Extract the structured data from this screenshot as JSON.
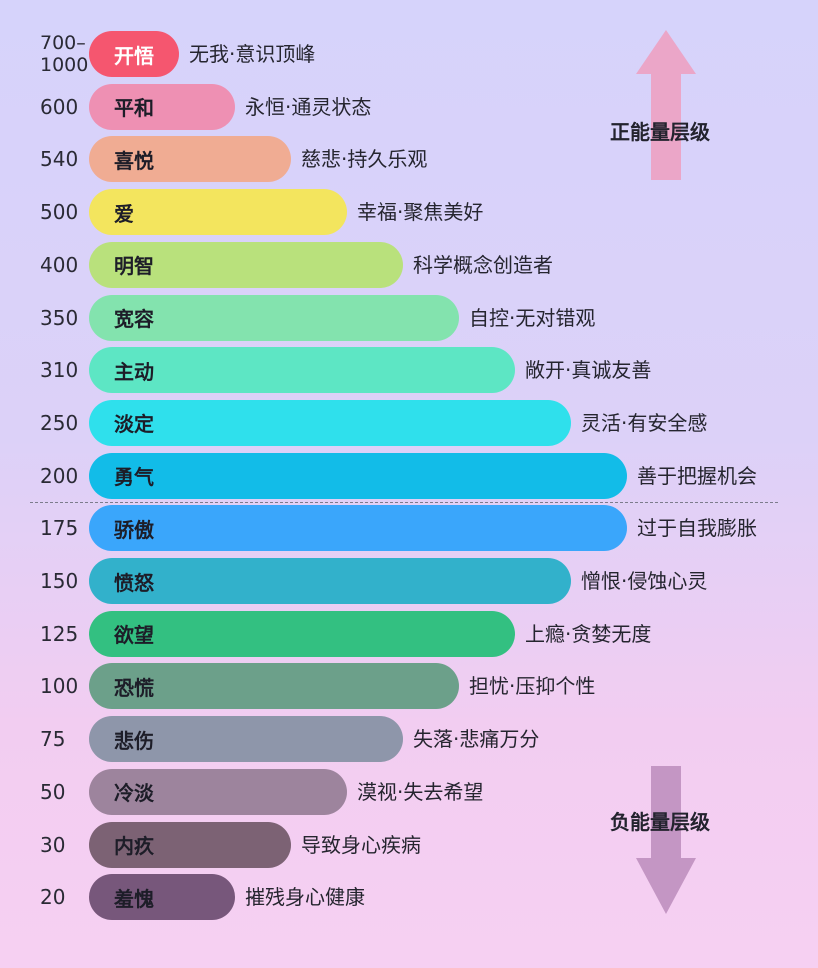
{
  "levels": [
    {
      "score": "700–\n1000",
      "name": "开悟",
      "desc": "无我·意识顶峰",
      "color": "#f5566f",
      "text_color": "#ffffff"
    },
    {
      "score": "600",
      "name": "平和",
      "desc": "永恒·通灵状态",
      "color": "#ee90b3",
      "text_color": "#1d1d28"
    },
    {
      "score": "540",
      "name": "喜悦",
      "desc": "慈悲·持久乐观",
      "color": "#f0ac93",
      "text_color": "#1d1d28"
    },
    {
      "score": "500",
      "name": "爱",
      "desc": "幸福·聚焦美好",
      "color": "#f3e55e",
      "text_color": "#1d1d28"
    },
    {
      "score": "400",
      "name": "明智",
      "desc": "科学概念创造者",
      "color": "#b9e17c",
      "text_color": "#1d1d28"
    },
    {
      "score": "350",
      "name": "宽容",
      "desc": "自控·无对错观",
      "color": "#83e3ae",
      "text_color": "#1d1d28"
    },
    {
      "score": "310",
      "name": "主动",
      "desc": "敞开·真诚友善",
      "color": "#5de6c4",
      "text_color": "#1d1d28"
    },
    {
      "score": "250",
      "name": "淡定",
      "desc": "灵活·有安全感",
      "color": "#2fe0ec",
      "text_color": "#1d1d28"
    },
    {
      "score": "200",
      "name": "勇气",
      "desc": "善于把握机会",
      "color": "#12bce8",
      "text_color": "#1d1d28"
    },
    {
      "score": "175",
      "name": "骄傲",
      "desc": "过于自我膨胀",
      "color": "#3aa6fb",
      "text_color": "#1d1d28"
    },
    {
      "score": "150",
      "name": "愤怒",
      "desc": "憎恨·侵蚀心灵",
      "color": "#32b1cb",
      "text_color": "#1d1d28"
    },
    {
      "score": "125",
      "name": "欲望",
      "desc": "上瘾·贪婪无度",
      "color": "#33c081",
      "text_color": "#1d1d28"
    },
    {
      "score": "100",
      "name": "恐慌",
      "desc": "担忧·压抑个性",
      "color": "#6ca08a",
      "text_color": "#1d1d28"
    },
    {
      "score": "75",
      "name": "悲伤",
      "desc": "失落·悲痛万分",
      "color": "#8e96aa",
      "text_color": "#1d1d28"
    },
    {
      "score": "50",
      "name": "冷淡",
      "desc": "漠视·失去希望",
      "color": "#9d849d",
      "text_color": "#1d1d28"
    },
    {
      "score": "30",
      "name": "内疚",
      "desc": "导致身心疾病",
      "color": "#7c6274",
      "text_color": "#1d1d28"
    },
    {
      "score": "20",
      "name": "羞愧",
      "desc": "摧残身心健康",
      "color": "#77577b",
      "text_color": "#1d1d28"
    }
  ],
  "bar_widths": [
    0.16,
    0.26,
    0.36,
    0.46,
    0.56,
    0.66,
    0.76,
    0.86,
    0.96,
    0.96,
    0.86,
    0.76,
    0.66,
    0.56,
    0.46,
    0.36,
    0.26
  ],
  "positive_label": "正能量层级",
  "negative_label": "负能量层级",
  "arrow_up_color": "#eba6c8",
  "arrow_down_color": "#c496c4"
}
